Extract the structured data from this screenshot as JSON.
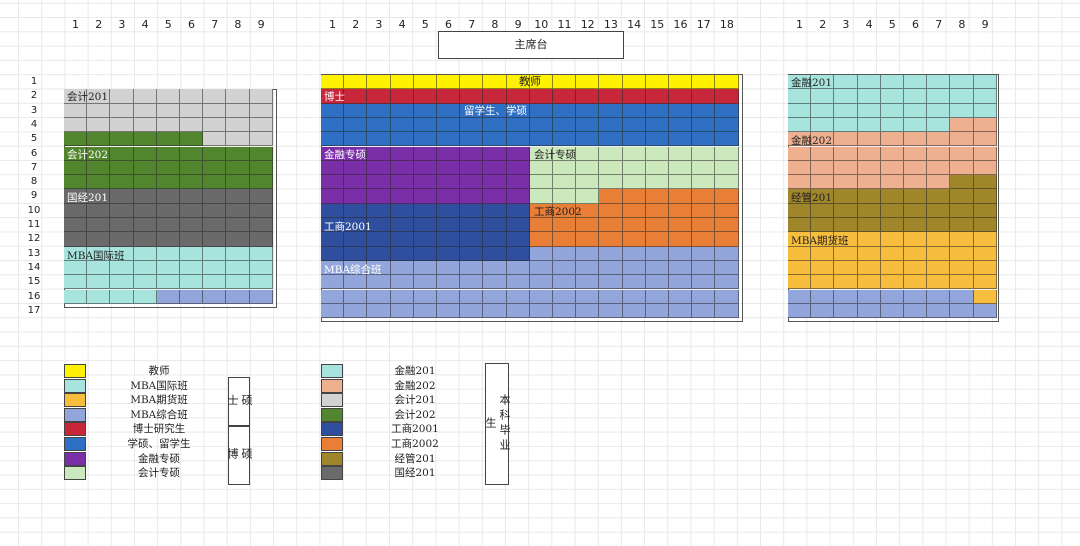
{
  "stage_label": "主席台",
  "teacher_label": "教师",
  "left_col_numbers": [
    "1",
    "2",
    "3",
    "4",
    "5",
    "6",
    "7",
    "8",
    "9"
  ],
  "middle_col_numbers": [
    "1",
    "2",
    "3",
    "4",
    "5",
    "6",
    "7",
    "8",
    "9",
    "10",
    "11",
    "12",
    "13",
    "14",
    "15",
    "16",
    "17",
    "18"
  ],
  "right_col_numbers": [
    "1",
    "2",
    "3",
    "4",
    "5",
    "6",
    "7",
    "8",
    "9"
  ],
  "row_numbers": [
    "1",
    "2",
    "3",
    "4",
    "5",
    "6",
    "7",
    "8",
    "9",
    "10",
    "11",
    "12",
    "13",
    "14",
    "15",
    "16",
    "17"
  ],
  "colors": {
    "teacher": "#fff200",
    "mba_intl": "#a8e4de",
    "mba_futures": "#f7bd3c",
    "mba_general": "#93a6dc",
    "phd": "#c8263a",
    "master_intl": "#2f6fc4",
    "finance_master": "#7a2fa8",
    "accounting_master": "#cce8bd",
    "finance201": "#a8e4de",
    "finance202": "#efb08f",
    "accounting201": "#d2d2d2",
    "accounting202": "#52862e",
    "business2001": "#2f4f9e",
    "business2002": "#e97e37",
    "management201": "#a0862a",
    "economics201": "#6a6a6a"
  },
  "blocks": {
    "left": {
      "accounting201": "会计201",
      "accounting202": "会计202",
      "economics201": "国经201",
      "mba_intl": "MBA国际班"
    },
    "middle": {
      "phd": "博士",
      "master_intl": "留学生、学硕",
      "finance_master": "金融专硕",
      "accounting_master": "会计专硕",
      "business2002": "工商2002",
      "business2001": "工商2001",
      "mba_general": "MBA综合班"
    },
    "right": {
      "finance201": "金融201",
      "finance202": "金融202",
      "management201": "经管201",
      "mba_futures": "MBA期货班"
    }
  },
  "legend_left": [
    {
      "label": "教师",
      "color_key": "teacher"
    },
    {
      "label": "MBA国际班",
      "color_key": "mba_intl"
    },
    {
      "label": "MBA期货班",
      "color_key": "mba_futures"
    },
    {
      "label": "MBA综合班",
      "color_key": "mba_general"
    },
    {
      "label": "博士研究生",
      "color_key": "phd"
    },
    {
      "label": "学硕、留学生",
      "color_key": "master_intl"
    },
    {
      "label": "金融专硕",
      "color_key": "finance_master"
    },
    {
      "label": "会计专硕",
      "color_key": "accounting_master"
    }
  ],
  "legend_right": [
    {
      "label": "金融201",
      "color_key": "finance201"
    },
    {
      "label": "金融202",
      "color_key": "finance202"
    },
    {
      "label": "会计201",
      "color_key": "accounting201"
    },
    {
      "label": "会计202",
      "color_key": "accounting202"
    },
    {
      "label": "工商2001",
      "color_key": "business2001"
    },
    {
      "label": "工商2002",
      "color_key": "business2002"
    },
    {
      "label": "经管201",
      "color_key": "management201"
    },
    {
      "label": "国经201",
      "color_key": "economics201"
    }
  ],
  "group_labels": {
    "master": "硕士",
    "master_phd": "硕博",
    "undergrad": "本科毕业生"
  }
}
